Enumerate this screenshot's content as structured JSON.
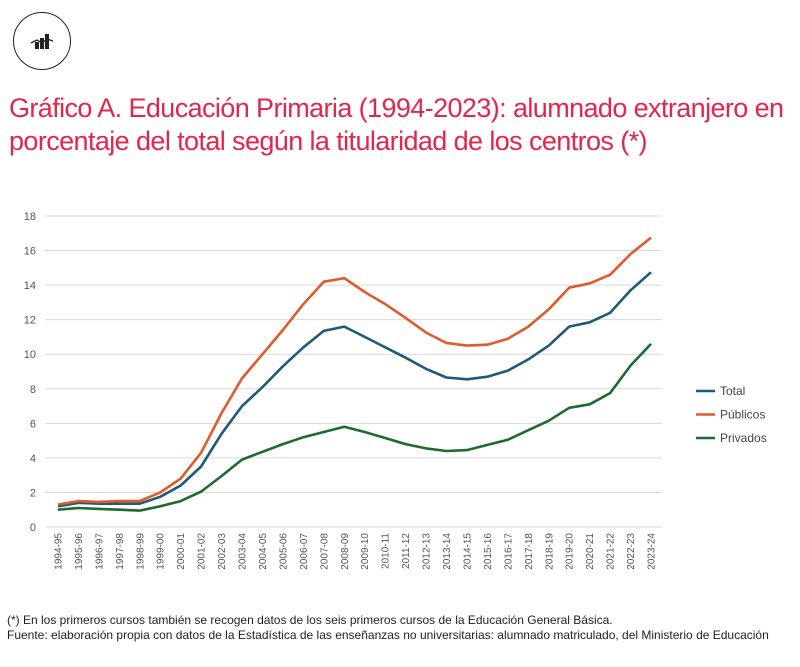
{
  "header": {
    "icon": "chart-icon",
    "title": "Gráfico A. Educación Primaria (1994-2023): alumnado extranjero en porcentaje del total según la titularidad de los centros (*)"
  },
  "chart_data": {
    "type": "line",
    "title": "Gráfico A. Educación Primaria (1994-2023): alumnado extranjero en porcentaje del total según la titularidad de los centros (*)",
    "xlabel": "",
    "ylabel": "",
    "ylim": [
      0,
      18
    ],
    "yticks": [
      "0",
      "2",
      "4",
      "6",
      "8",
      "10",
      "12",
      "14",
      "16",
      "18"
    ],
    "grid": true,
    "legend_position": "right",
    "categories": [
      "1994-95",
      "1995-96",
      "1996-97",
      "1997-98",
      "1998-99",
      "1999-00",
      "2000-01",
      "2001-02",
      "2002-03",
      "2003-04",
      "2004-05",
      "2005-06",
      "2006-07",
      "2007-08",
      "2008-09",
      "2009-10",
      "2010-11",
      "2011-12",
      "2012-13",
      "2013-14",
      "2014-15",
      "2015-16",
      "2016-17",
      "2017-18",
      "2018-19",
      "2019-20",
      "2020-21",
      "2021-22",
      "2022-23",
      "2023-24"
    ],
    "series": [
      {
        "name": "Total",
        "color": "#1f5a7a",
        "values": [
          1.2,
          1.4,
          1.35,
          1.35,
          1.35,
          1.75,
          2.4,
          3.5,
          5.4,
          7.0,
          8.1,
          9.3,
          10.4,
          11.35,
          11.6,
          11.0,
          10.4,
          9.8,
          9.15,
          8.65,
          8.55,
          8.7,
          9.05,
          9.7,
          10.5,
          11.6,
          11.85,
          12.4,
          13.7,
          14.75
        ]
      },
      {
        "name": "Públicos",
        "color": "#e05a2a",
        "values": [
          1.3,
          1.5,
          1.45,
          1.5,
          1.5,
          2.0,
          2.8,
          4.3,
          6.6,
          8.6,
          10.0,
          11.4,
          12.9,
          14.2,
          14.4,
          13.6,
          12.9,
          12.1,
          11.25,
          10.65,
          10.5,
          10.55,
          10.9,
          11.6,
          12.6,
          13.85,
          14.1,
          14.6,
          15.8,
          16.75
        ]
      },
      {
        "name": "Privados",
        "color": "#1e6b2e",
        "values": [
          1.0,
          1.1,
          1.05,
          1.0,
          0.95,
          1.2,
          1.5,
          2.05,
          2.95,
          3.9,
          4.35,
          4.8,
          5.2,
          5.5,
          5.8,
          5.5,
          5.15,
          4.8,
          4.55,
          4.4,
          4.45,
          4.75,
          5.05,
          5.6,
          6.15,
          6.9,
          7.1,
          7.75,
          9.35,
          10.6
        ]
      }
    ]
  },
  "footer": {
    "note": "(*) En los primeros cursos también se recogen datos de los seis primeros cursos de la Educación General Básica.",
    "source": "Fuente: elaboración propia con datos de la Estadística de las enseñanzas no universitarias: alumnado matriculado, del Ministerio de Educación"
  }
}
